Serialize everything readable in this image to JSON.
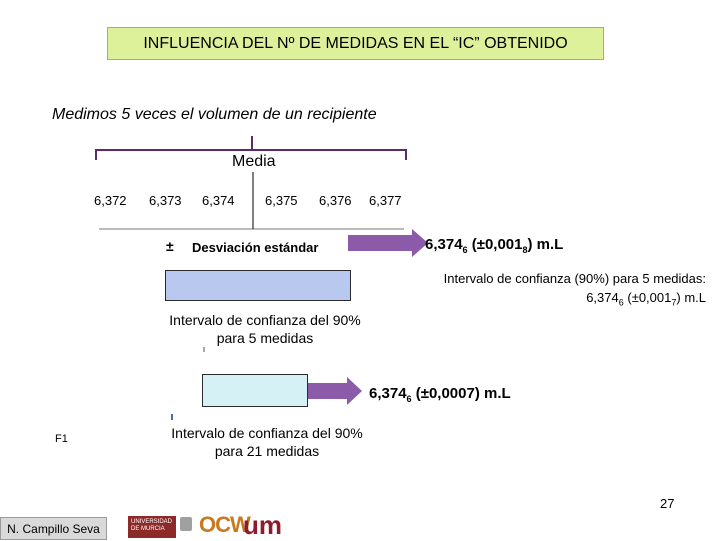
{
  "title": "INFLUENCIA DEL Nº DE MEDIDAS EN EL “IC” OBTENIDO",
  "subtitle": "Medimos 5 veces el volumen de un recipiente",
  "media_label": "Media",
  "scale_ticks": [
    "6,372",
    "6,373",
    "6,374",
    "6,375",
    "6,376",
    "6,377"
  ],
  "pm_symbol": "±",
  "desviacion_label": "Desviación estándar",
  "result_sd": {
    "value": "6,374",
    "sub": "6",
    "pm_open": " (±0,001",
    "pm_sub": "8",
    "close": ") m.L"
  },
  "ic_90_title": "Intervalo de confianza (90%) para 5 medidas:",
  "ic_90_value": {
    "value": "6,374",
    "sub": "6",
    "pm_open": " (±0,001",
    "pm_sub": "7",
    "close": ") m.L"
  },
  "caption_5": {
    "line1": "Intervalo de confianza del 90%",
    "line2": "para 5 medidas"
  },
  "result_21": {
    "value": "6,374",
    "sub": "6",
    "rest": " (±0,0007) m.L"
  },
  "caption_21": {
    "line1": "Intervalo de confianza del 90%",
    "line2": "para 21 medidas"
  },
  "footer": {
    "f_label": "F1",
    "page_number": "27",
    "author": "N. Campillo Seva"
  },
  "logos": {
    "logo_a_text": "UNIVERSIDAD DE MURCIA",
    "logo_c_text": "OC",
    "logo_c_accent": "W",
    "logo_d_text": "um"
  },
  "colors": {
    "title_bg": "#ddf09a",
    "bracket": "#5b2a6b",
    "box_5": "#b8c8ef",
    "box_21": "#d6f1f5",
    "arrow": "#8b5aa8"
  }
}
